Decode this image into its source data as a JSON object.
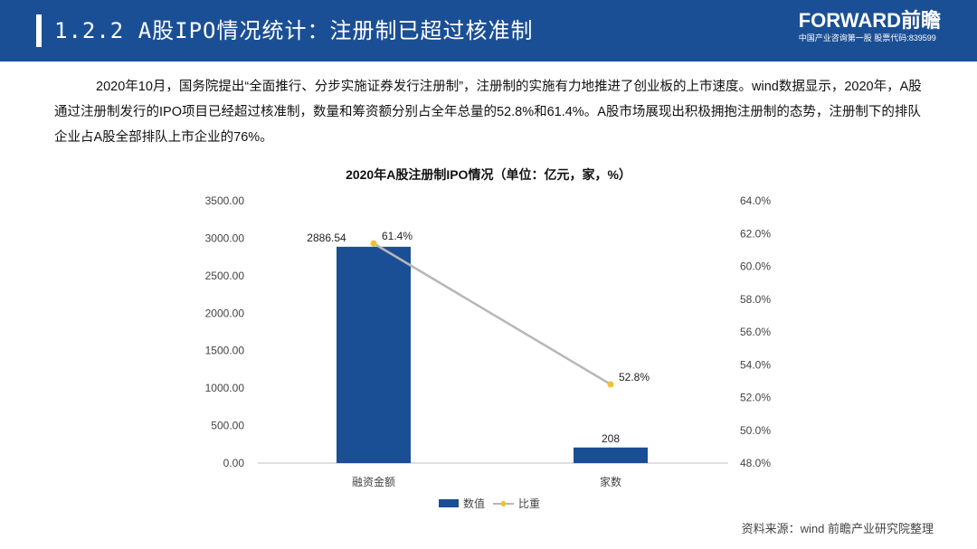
{
  "header": {
    "title": "1.2.2 A股IPO情况统计：注册制已超过核准制",
    "logo_main": "FORWARD前瞻",
    "logo_sub": "中国产业咨询第一股 股票代码:839599"
  },
  "paragraph": "2020年10月，国务院提出“全面推行、分步实施证券发行注册制”，注册制的实施有力地推进了创业板的上市速度。wind数据显示，2020年，A股通过注册制发行的IPO项目已经超过核准制，数量和筹资额分别占全年总量的52.8%和61.4%。A股市场展现出积极拥抱注册制的态势，注册制下的排队企业占A股全部排队上市企业的76%。",
  "source": "资料来源：wind 前瞻产业研究院整理",
  "colors": {
    "header": "#1b4f95",
    "bar": "#1b4f95",
    "line": "#b7b7b7",
    "marker": "#f2c12e"
  },
  "chart_data": {
    "type": "bar",
    "title": "2020年A股注册制IPO情况（单位：亿元，家，%）",
    "categories": [
      "融资金额",
      "家数"
    ],
    "series": [
      {
        "name": "数值",
        "type": "bar",
        "axis": "left",
        "values": [
          2886.54,
          208
        ],
        "labels": [
          "2886.54",
          "208"
        ]
      },
      {
        "name": "比重",
        "type": "line",
        "axis": "right",
        "values": [
          61.4,
          52.8
        ],
        "labels": [
          "61.4%",
          "52.8%"
        ]
      }
    ],
    "y_left": {
      "min": 0,
      "max": 3500,
      "ticks": [
        "0.00",
        "500.00",
        "1000.00",
        "1500.00",
        "2000.00",
        "2500.00",
        "3000.00",
        "3500.00"
      ]
    },
    "y_right": {
      "min": 48,
      "max": 64,
      "ticks": [
        "48.0%",
        "50.0%",
        "52.0%",
        "54.0%",
        "56.0%",
        "58.0%",
        "60.0%",
        "62.0%",
        "64.0%"
      ]
    },
    "grid": false,
    "legend": "bottom"
  }
}
